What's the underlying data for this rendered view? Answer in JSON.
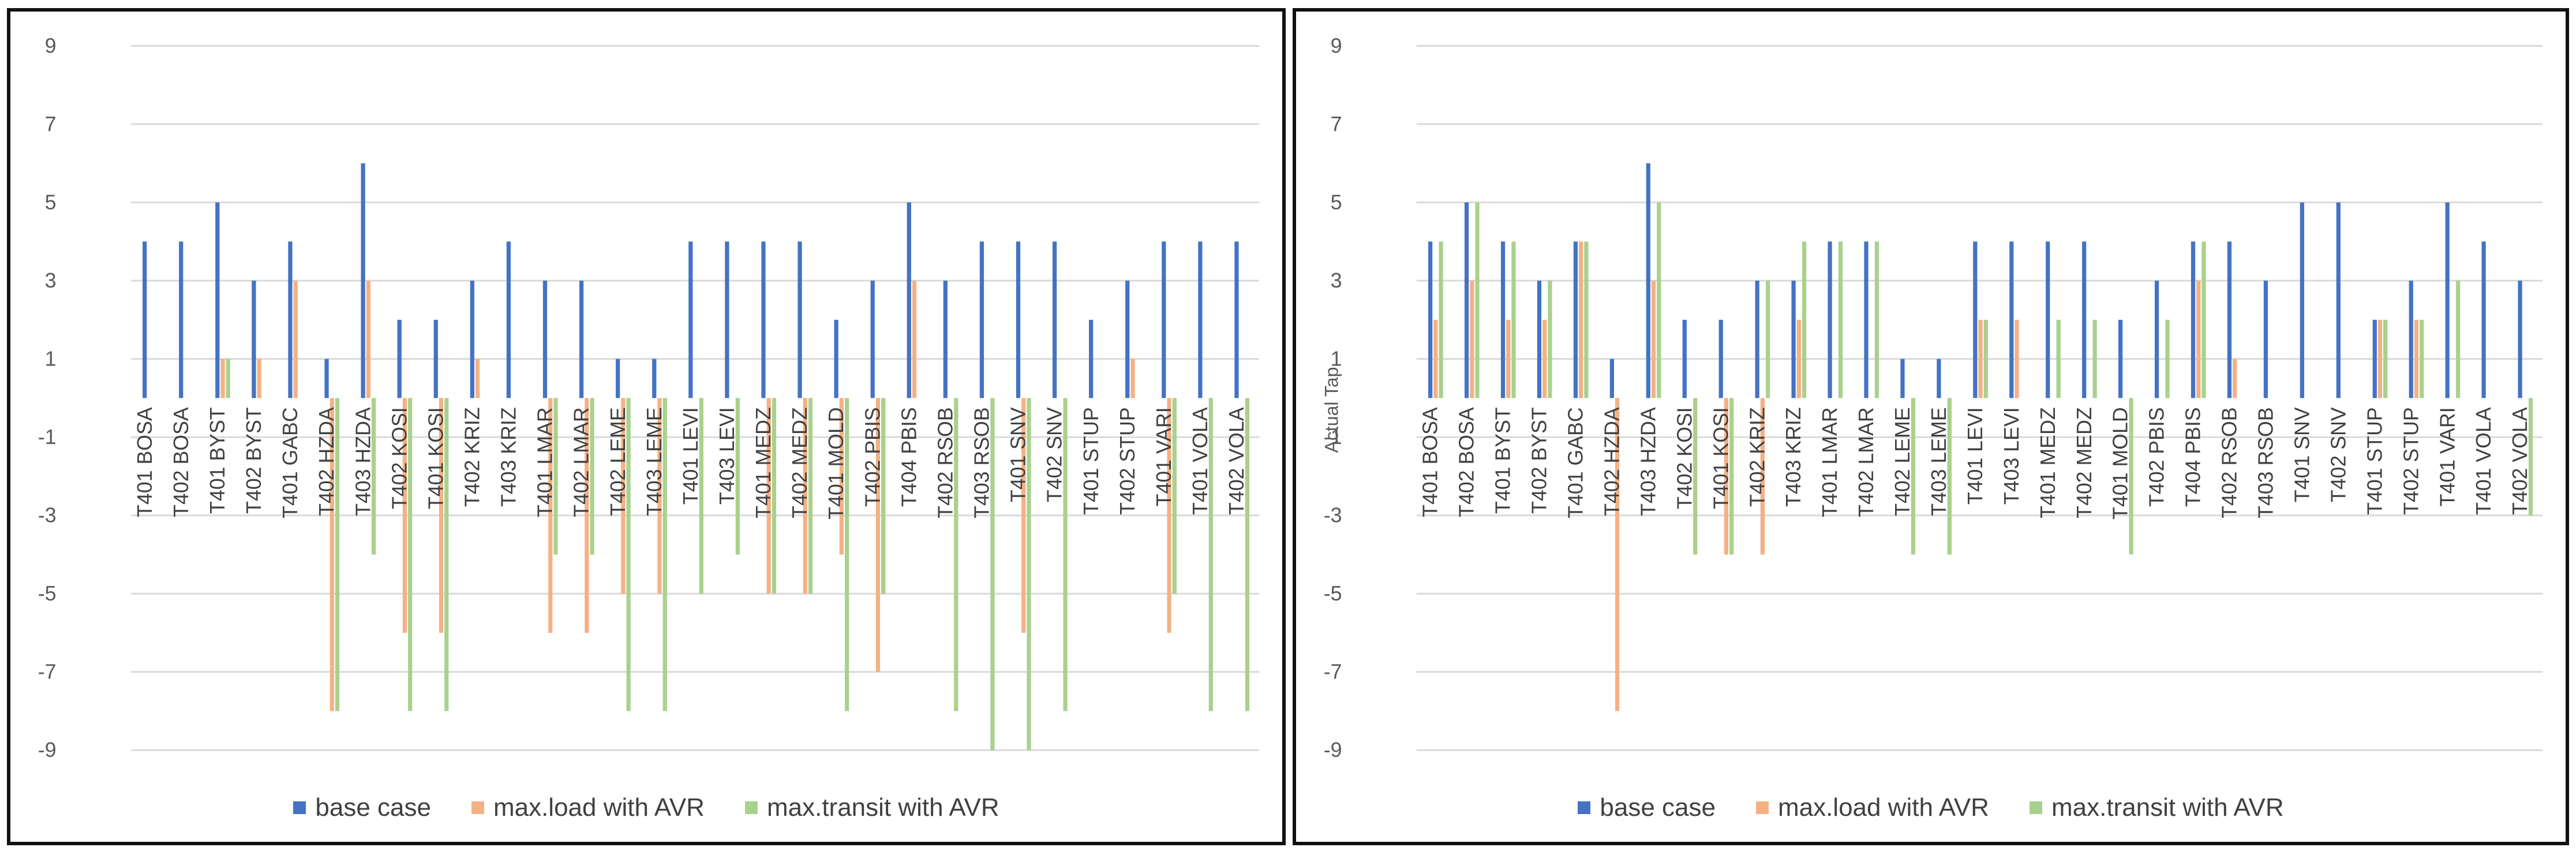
{
  "colors": {
    "base": "#4472C4",
    "load": "#F4B183",
    "transit": "#A9D18E",
    "grid": "#D9D9D9",
    "text": "#595959"
  },
  "legend": {
    "base": "base case",
    "load": "max.load with AVR",
    "transit": "max.transit with AVR"
  },
  "chart_data": [
    {
      "type": "bar",
      "ylabel": "",
      "ylim": [
        -9,
        9
      ],
      "yticks": [
        9,
        7,
        5,
        3,
        1,
        -1,
        -3,
        -5,
        -7,
        -9
      ],
      "grid": true,
      "legend_position": "bottom",
      "categories": [
        "T401 BOSA",
        "T402 BOSA",
        "T401 BYST",
        "T402 BYST",
        "T401 GABC",
        "T402 HZDA",
        "T403 HZDA",
        "T402 KOSI",
        "T401 KOSI",
        "T402 KRIZ",
        "T403 KRIZ",
        "T401 LMAR",
        "T402 LMAR",
        "T402 LEME",
        "T403 LEME",
        "T401 LEVI",
        "T403 LEVI",
        "T401 MEDZ",
        "T402 MEDZ",
        "T401 MOLD",
        "T402 PBIS",
        "T404 PBIS",
        "T402 RSOB",
        "T403 RSOB",
        "T401 SNV",
        "T402 SNV",
        "T401 STUP",
        "T402 STUP",
        "T401 VARI",
        "T401 VOLA",
        "T402 VOLA"
      ],
      "series": [
        {
          "name": "base case",
          "values": [
            4,
            4,
            5,
            3,
            4,
            1,
            6,
            2,
            2,
            3,
            4,
            3,
            3,
            1,
            1,
            4,
            4,
            4,
            4,
            2,
            3,
            5,
            3,
            4,
            4,
            4,
            2,
            3,
            4,
            4,
            4
          ]
        },
        {
          "name": "max.load with AVR",
          "values": [
            0,
            0,
            1,
            1,
            3,
            -8,
            3,
            -6,
            -6,
            1,
            0,
            -6,
            -6,
            -5,
            -5,
            0,
            0,
            -5,
            -5,
            -4,
            -7,
            3,
            0,
            0,
            -6,
            0,
            0,
            1,
            -6,
            0,
            0
          ]
        },
        {
          "name": "max.transit with AVR",
          "values": [
            0,
            0,
            1,
            0,
            0,
            -8,
            -4,
            -8,
            -8,
            0,
            0,
            -4,
            -4,
            -8,
            -8,
            -5,
            -4,
            -5,
            -5,
            -8,
            -5,
            0,
            -8,
            -9,
            -9,
            -8,
            0,
            0,
            -5,
            -8,
            -8
          ]
        }
      ]
    },
    {
      "type": "bar",
      "ylabel": "Actual Tap",
      "ylim": [
        -9,
        9
      ],
      "yticks": [
        9,
        7,
        5,
        3,
        1,
        -1,
        -3,
        -5,
        -7,
        -9
      ],
      "grid": true,
      "legend_position": "bottom",
      "categories": [
        "T401 BOSA",
        "T402 BOSA",
        "T401 BYST",
        "T402 BYST",
        "T401 GABC",
        "T402 HZDA",
        "T403 HZDA",
        "T402 KOSI",
        "T401 KOSI",
        "T402 KRIZ",
        "T403 KRIZ",
        "T401 LMAR",
        "T402 LMAR",
        "T402 LEME",
        "T403 LEME",
        "T401 LEVI",
        "T403 LEVI",
        "T401 MEDZ",
        "T402 MEDZ",
        "T401 MOLD",
        "T402 PBIS",
        "T404 PBIS",
        "T402 RSOB",
        "T403 RSOB",
        "T401 SNV",
        "T402 SNV",
        "T401 STUP",
        "T402 STUP",
        "T401 VARI",
        "T401 VOLA",
        "T402 VOLA"
      ],
      "series": [
        {
          "name": "base case",
          "values": [
            4,
            5,
            4,
            3,
            4,
            1,
            6,
            2,
            2,
            3,
            3,
            4,
            4,
            1,
            1,
            4,
            4,
            4,
            4,
            2,
            3,
            4,
            4,
            3,
            5,
            5,
            2,
            3,
            5,
            4,
            3
          ]
        },
        {
          "name": "max.load with AVR",
          "values": [
            2,
            3,
            2,
            2,
            4,
            -8,
            3,
            0,
            -4,
            -4,
            2,
            0,
            0,
            0,
            0,
            2,
            2,
            0,
            0,
            0,
            0,
            3,
            1,
            0,
            0,
            0,
            2,
            2,
            0,
            0,
            0
          ]
        },
        {
          "name": "max.transit with AVR",
          "values": [
            4,
            5,
            4,
            3,
            4,
            0,
            5,
            -4,
            -4,
            3,
            4,
            4,
            4,
            -4,
            -4,
            2,
            0,
            2,
            2,
            -4,
            2,
            4,
            0,
            0,
            0,
            0,
            2,
            2,
            3,
            0,
            -3
          ]
        }
      ]
    }
  ]
}
